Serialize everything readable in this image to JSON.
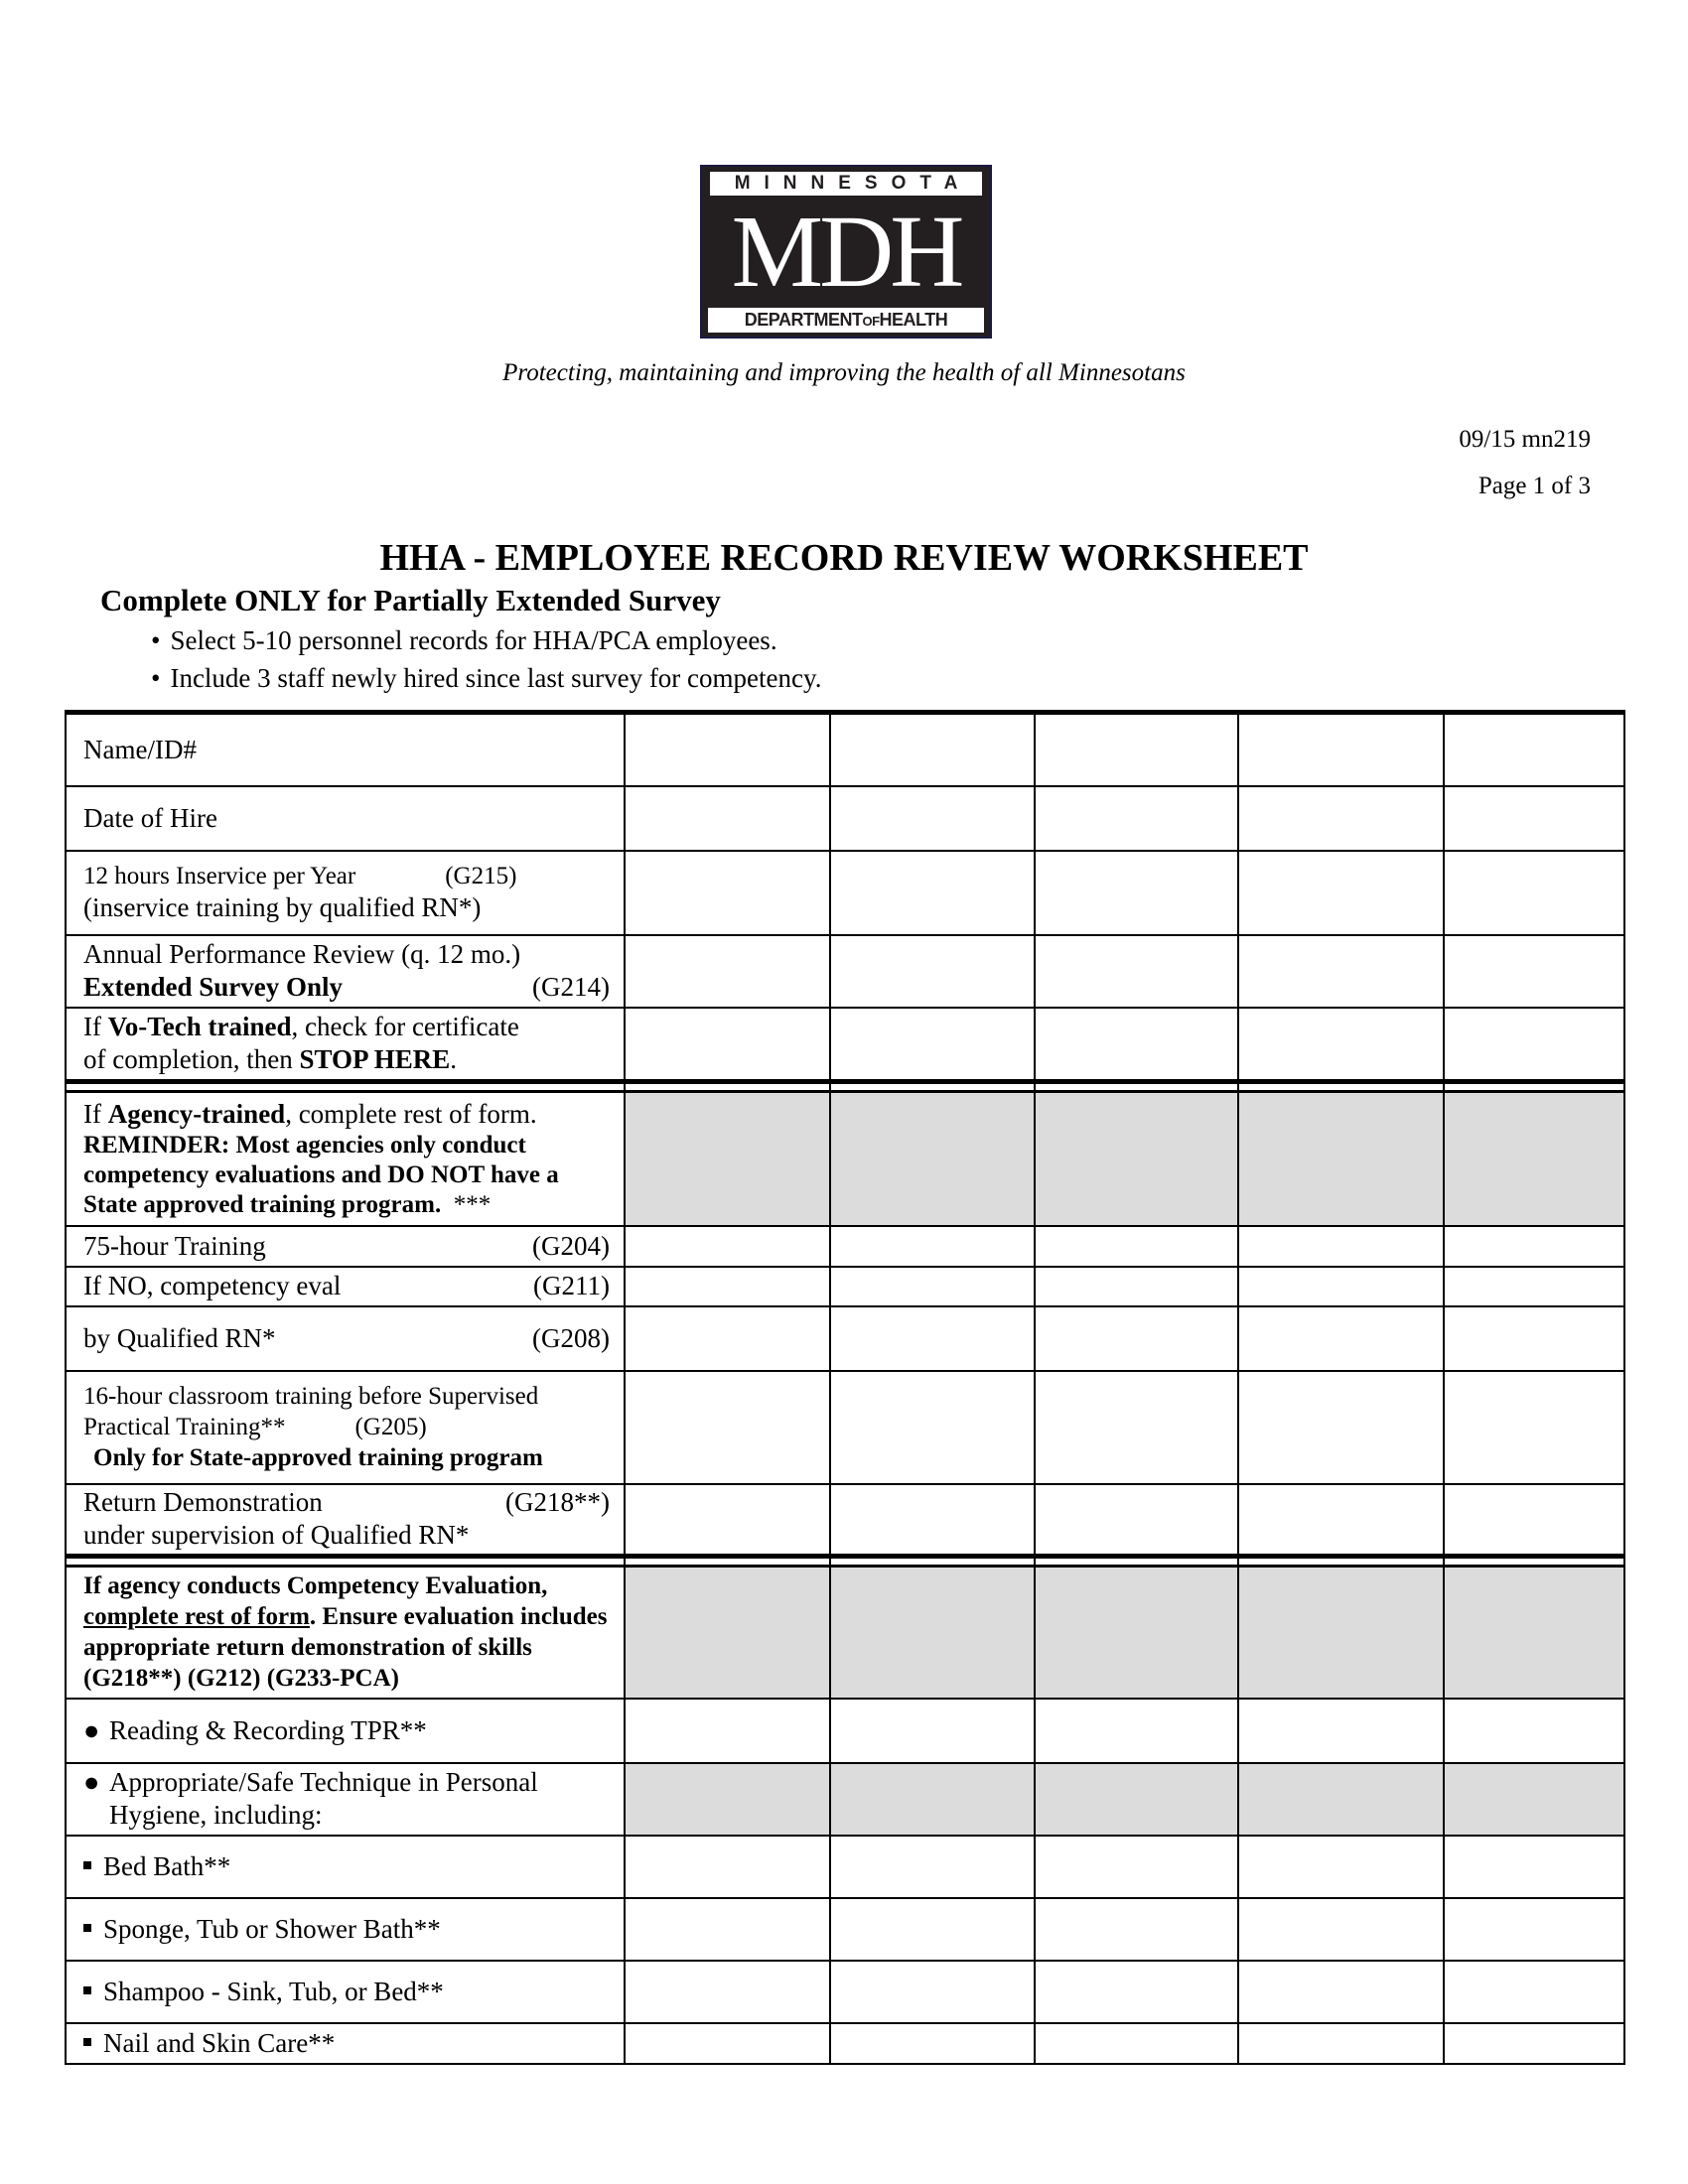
{
  "logo": {
    "top": "MINNESOTA",
    "main": "MDH",
    "bottom_a": "DEPARTMENT",
    "bottom_b": "OF",
    "bottom_c": "HEALTH"
  },
  "tagline": "Protecting, maintaining and improving the health of all Minnesotans",
  "form_code": "09/15  mn219",
  "page": "Page 1 of 3",
  "title": "HHA - EMPLOYEE RECORD REVIEW WORKSHEET",
  "subtitle": "Complete ONLY for Partially Extended Survey",
  "bullets": [
    "Select 5-10 personnel records for HHA/PCA employees.",
    "Include 3 staff newly hired since last survey for competency."
  ],
  "rows": {
    "name": "Name/ID#",
    "hire": "Date of Hire",
    "inservice": {
      "a": "12 hours Inservice per Year",
      "code": "(G215)",
      "b": "(inservice training by qualified RN*)"
    },
    "annual": {
      "a": "Annual Performance Review (q. 12 mo.)",
      "b": "Extended Survey Only",
      "code": "(G214)"
    },
    "votech": {
      "a": "If ",
      "b": "Vo-Tech trained",
      "c": ", check for certificate",
      "d": "of completion, then ",
      "e": "STOP HERE",
      "f": "."
    },
    "agency": {
      "a": "If ",
      "b": "Agency-trained",
      "c": ", complete rest of form.",
      "d": "REMINDER: Most agencies only conduct competency evaluations and DO NOT have a State approved training program.",
      "e": "  ***"
    },
    "training75": {
      "label": "75-hour Training",
      "code": "(G204)"
    },
    "ifno": {
      "label": "If NO, competency eval",
      "code": "(G211)"
    },
    "byrn": {
      "label": "by Qualified RN*",
      "code": "(G208)"
    },
    "classroom": {
      "a": "16-hour classroom training before Supervised",
      "b": "Practical Training**",
      "code": "(G205)",
      "c": "Only for State-approved training program"
    },
    "returndemo": {
      "a": "Return Demonstration",
      "code": "(G218**)",
      "b": "under supervision of Qualified RN*"
    },
    "competency": {
      "a": "If agency conducts Competency Evaluation,",
      "b": "complete rest of form",
      "c": ".  Ensure evaluation includes appropriate return demonstration of skills (G218**) (G212) (G233-PCA)"
    },
    "tpr": "Reading & Recording TPR**",
    "hygiene": "Appropriate/Safe Technique in Personal Hygiene, including:",
    "bedbath": "Bed Bath**",
    "sponge": "Sponge, Tub or Shower Bath**",
    "shampoo": "Shampoo - Sink, Tub, or Bed**",
    "nail": "Nail and Skin Care**"
  },
  "shade_color": "#dcdcdc",
  "employee_columns": 5
}
